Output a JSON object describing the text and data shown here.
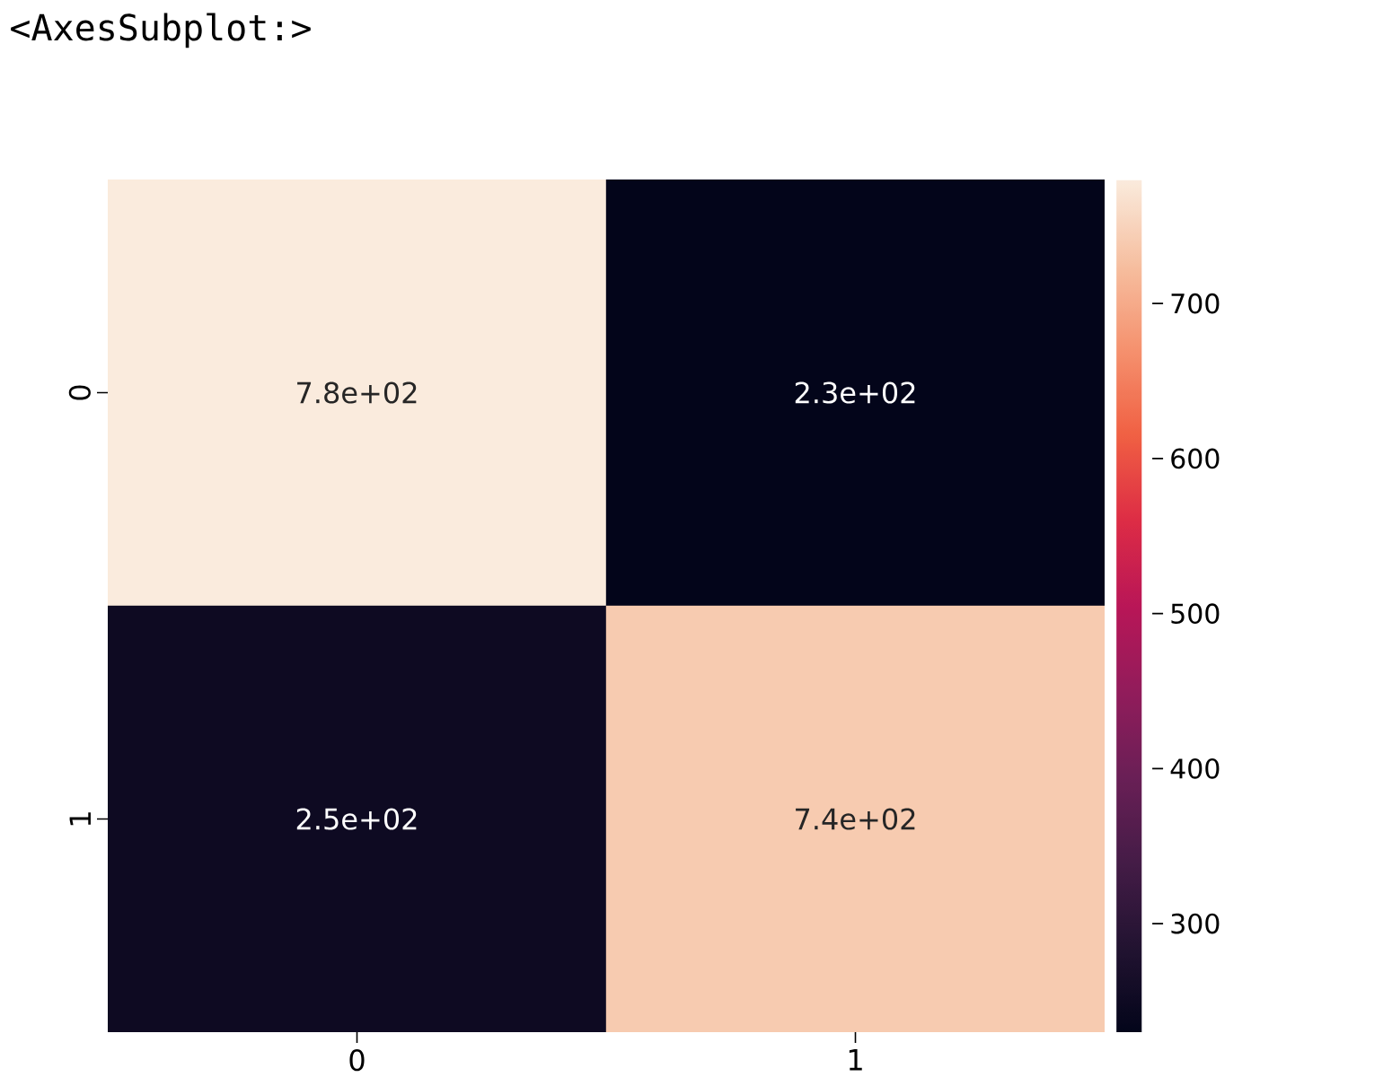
{
  "chart_data": {
    "type": "heatmap",
    "annotations": [
      "<AxesSubplot:>"
    ],
    "categories": [
      "0",
      "1"
    ],
    "y_categories": [
      "0",
      "1"
    ],
    "cells": [
      [
        780,
        230
      ],
      [
        250,
        740
      ]
    ],
    "cell_labels": [
      [
        "7.8e+02",
        "2.3e+02"
      ],
      [
        "2.5e+02",
        "7.4e+02"
      ]
    ],
    "clim": [
      230,
      780
    ],
    "cticks": [
      300,
      400,
      500,
      600,
      700
    ]
  }
}
